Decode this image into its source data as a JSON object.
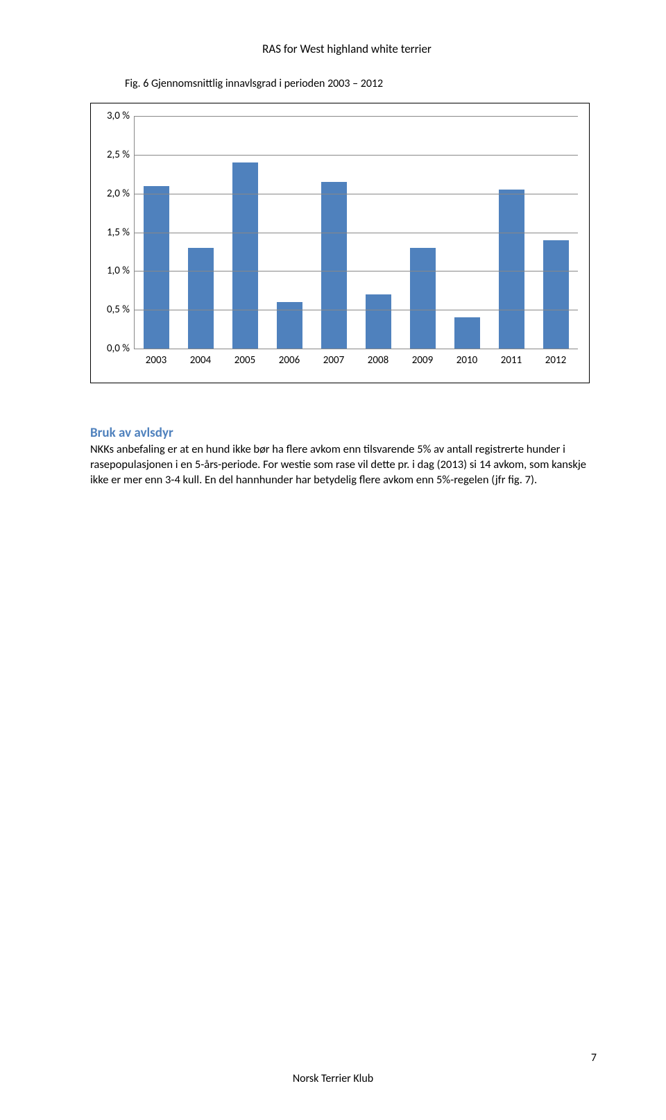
{
  "page_header": "RAS for West highland white terrier",
  "fig_title": "Fig. 6 Gjennomsnittlig innavlsgrad i perioden 2003 – 2012",
  "chart": {
    "type": "bar",
    "categories": [
      "2003",
      "2004",
      "2005",
      "2006",
      "2007",
      "2008",
      "2009",
      "2010",
      "2011",
      "2012"
    ],
    "values": [
      2.1,
      1.3,
      2.4,
      0.6,
      2.15,
      0.7,
      1.3,
      0.4,
      2.05,
      1.4
    ],
    "bar_color": "#4f81bd",
    "y_max": 3.0,
    "y_tick_step": 0.5,
    "y_ticks": [
      "0,0 %",
      "0,5 %",
      "1,0 %",
      "1,5 %",
      "2,0 %",
      "2,5 %",
      "3,0 %"
    ],
    "grid_color": "#888888",
    "background_color": "#ffffff",
    "label_fontsize": 15
  },
  "section_heading": "Bruk av avlsdyr",
  "body_text": "NKKs anbefaling er at en hund ikke bør ha flere avkom enn tilsvarende 5% av antall registrerte hunder i rasepopulasjonen i en 5-års-periode. For westie som rase vil dette pr. i dag (2013) si 14 avkom, som kanskje ikke er mer enn 3-4 kull. En del hannhunder har betydelig flere avkom enn 5%-regelen (jfr fig. 7).",
  "footer": "Norsk Terrier Klub",
  "page_number": "7"
}
